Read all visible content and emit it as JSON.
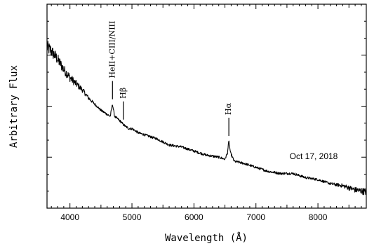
{
  "chart_data": {
    "type": "line",
    "xlabel": "Wavelength (Å)",
    "ylabel": "Arbitrary Flux",
    "xlim": [
      3630,
      8780
    ],
    "ylim": [
      0,
      1
    ],
    "x_ticks": [
      4000,
      5000,
      6000,
      7000,
      8000
    ],
    "x_tick_labels": [
      "4000",
      "5000",
      "6000",
      "7000",
      "8000"
    ],
    "y_tick_labels_shown": false,
    "grid": false,
    "annotations": [
      {
        "text": "HeII+CIII/NIII",
        "wavelength": 4686
      },
      {
        "text": "Hβ",
        "wavelength": 4861
      },
      {
        "text": "Hα",
        "wavelength": 6563
      }
    ],
    "date_text": "Oct 17, 2018",
    "series": [
      {
        "x": [
          3630,
          3700,
          3800,
          3900,
          4000,
          4100,
          4200,
          4300,
          4400,
          4500,
          4600,
          4650,
          4686,
          4720,
          4800,
          4861,
          4900,
          4950,
          5000,
          5100,
          5200,
          5400,
          5600,
          5800,
          6000,
          6200,
          6400,
          6500,
          6540,
          6563,
          6590,
          6650,
          6800,
          7000,
          7200,
          7400,
          7600,
          7800,
          8000,
          8200,
          8400,
          8600,
          8780
        ],
        "y": [
          0.79,
          0.77,
          0.73,
          0.68,
          0.64,
          0.61,
          0.58,
          0.54,
          0.51,
          0.48,
          0.46,
          0.45,
          0.51,
          0.45,
          0.43,
          0.41,
          0.4,
          0.39,
          0.39,
          0.37,
          0.36,
          0.34,
          0.31,
          0.3,
          0.28,
          0.26,
          0.25,
          0.24,
          0.27,
          0.33,
          0.27,
          0.23,
          0.22,
          0.2,
          0.18,
          0.17,
          0.17,
          0.15,
          0.14,
          0.12,
          0.11,
          0.09,
          0.08
        ]
      }
    ]
  }
}
